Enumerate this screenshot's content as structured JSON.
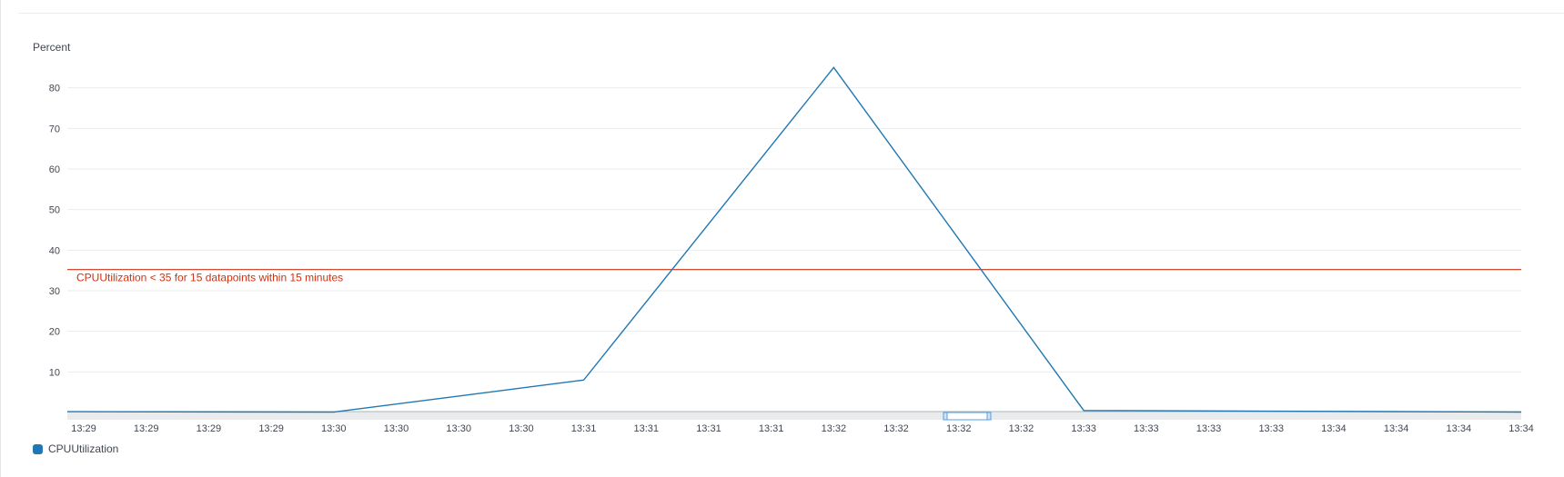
{
  "chart_data": {
    "type": "line",
    "ylabel": "Percent",
    "ylim": [
      0,
      90
    ],
    "yticks": [
      10,
      20,
      30,
      40,
      50,
      60,
      70,
      80
    ],
    "grid": true,
    "legend_placement": "bottom-left",
    "x_tick_labels": [
      "13:29",
      "13:29",
      "13:29",
      "13:29",
      "13:30",
      "13:30",
      "13:30",
      "13:30",
      "13:31",
      "13:31",
      "13:31",
      "13:31",
      "13:32",
      "13:32",
      "13:32",
      "13:32",
      "13:33",
      "13:33",
      "13:33",
      "13:33",
      "13:34",
      "13:34",
      "13:34",
      "13:34"
    ],
    "series": [
      {
        "name": "CPUUtilization",
        "color": "#1f77b4",
        "x": [
          "13:29",
          "13:30",
          "13:31",
          "13:32",
          "13:33",
          "13:34"
        ],
        "values": [
          0.2,
          0.1,
          8,
          85,
          0.5,
          0.1
        ]
      }
    ],
    "threshold": {
      "label": "CPUUtilization < 35 for 15 datapoints within 15 minutes",
      "value": 35,
      "color": "#d13212"
    }
  },
  "legend": {
    "label": "CPUUtilization",
    "color": "#1f77b4"
  }
}
